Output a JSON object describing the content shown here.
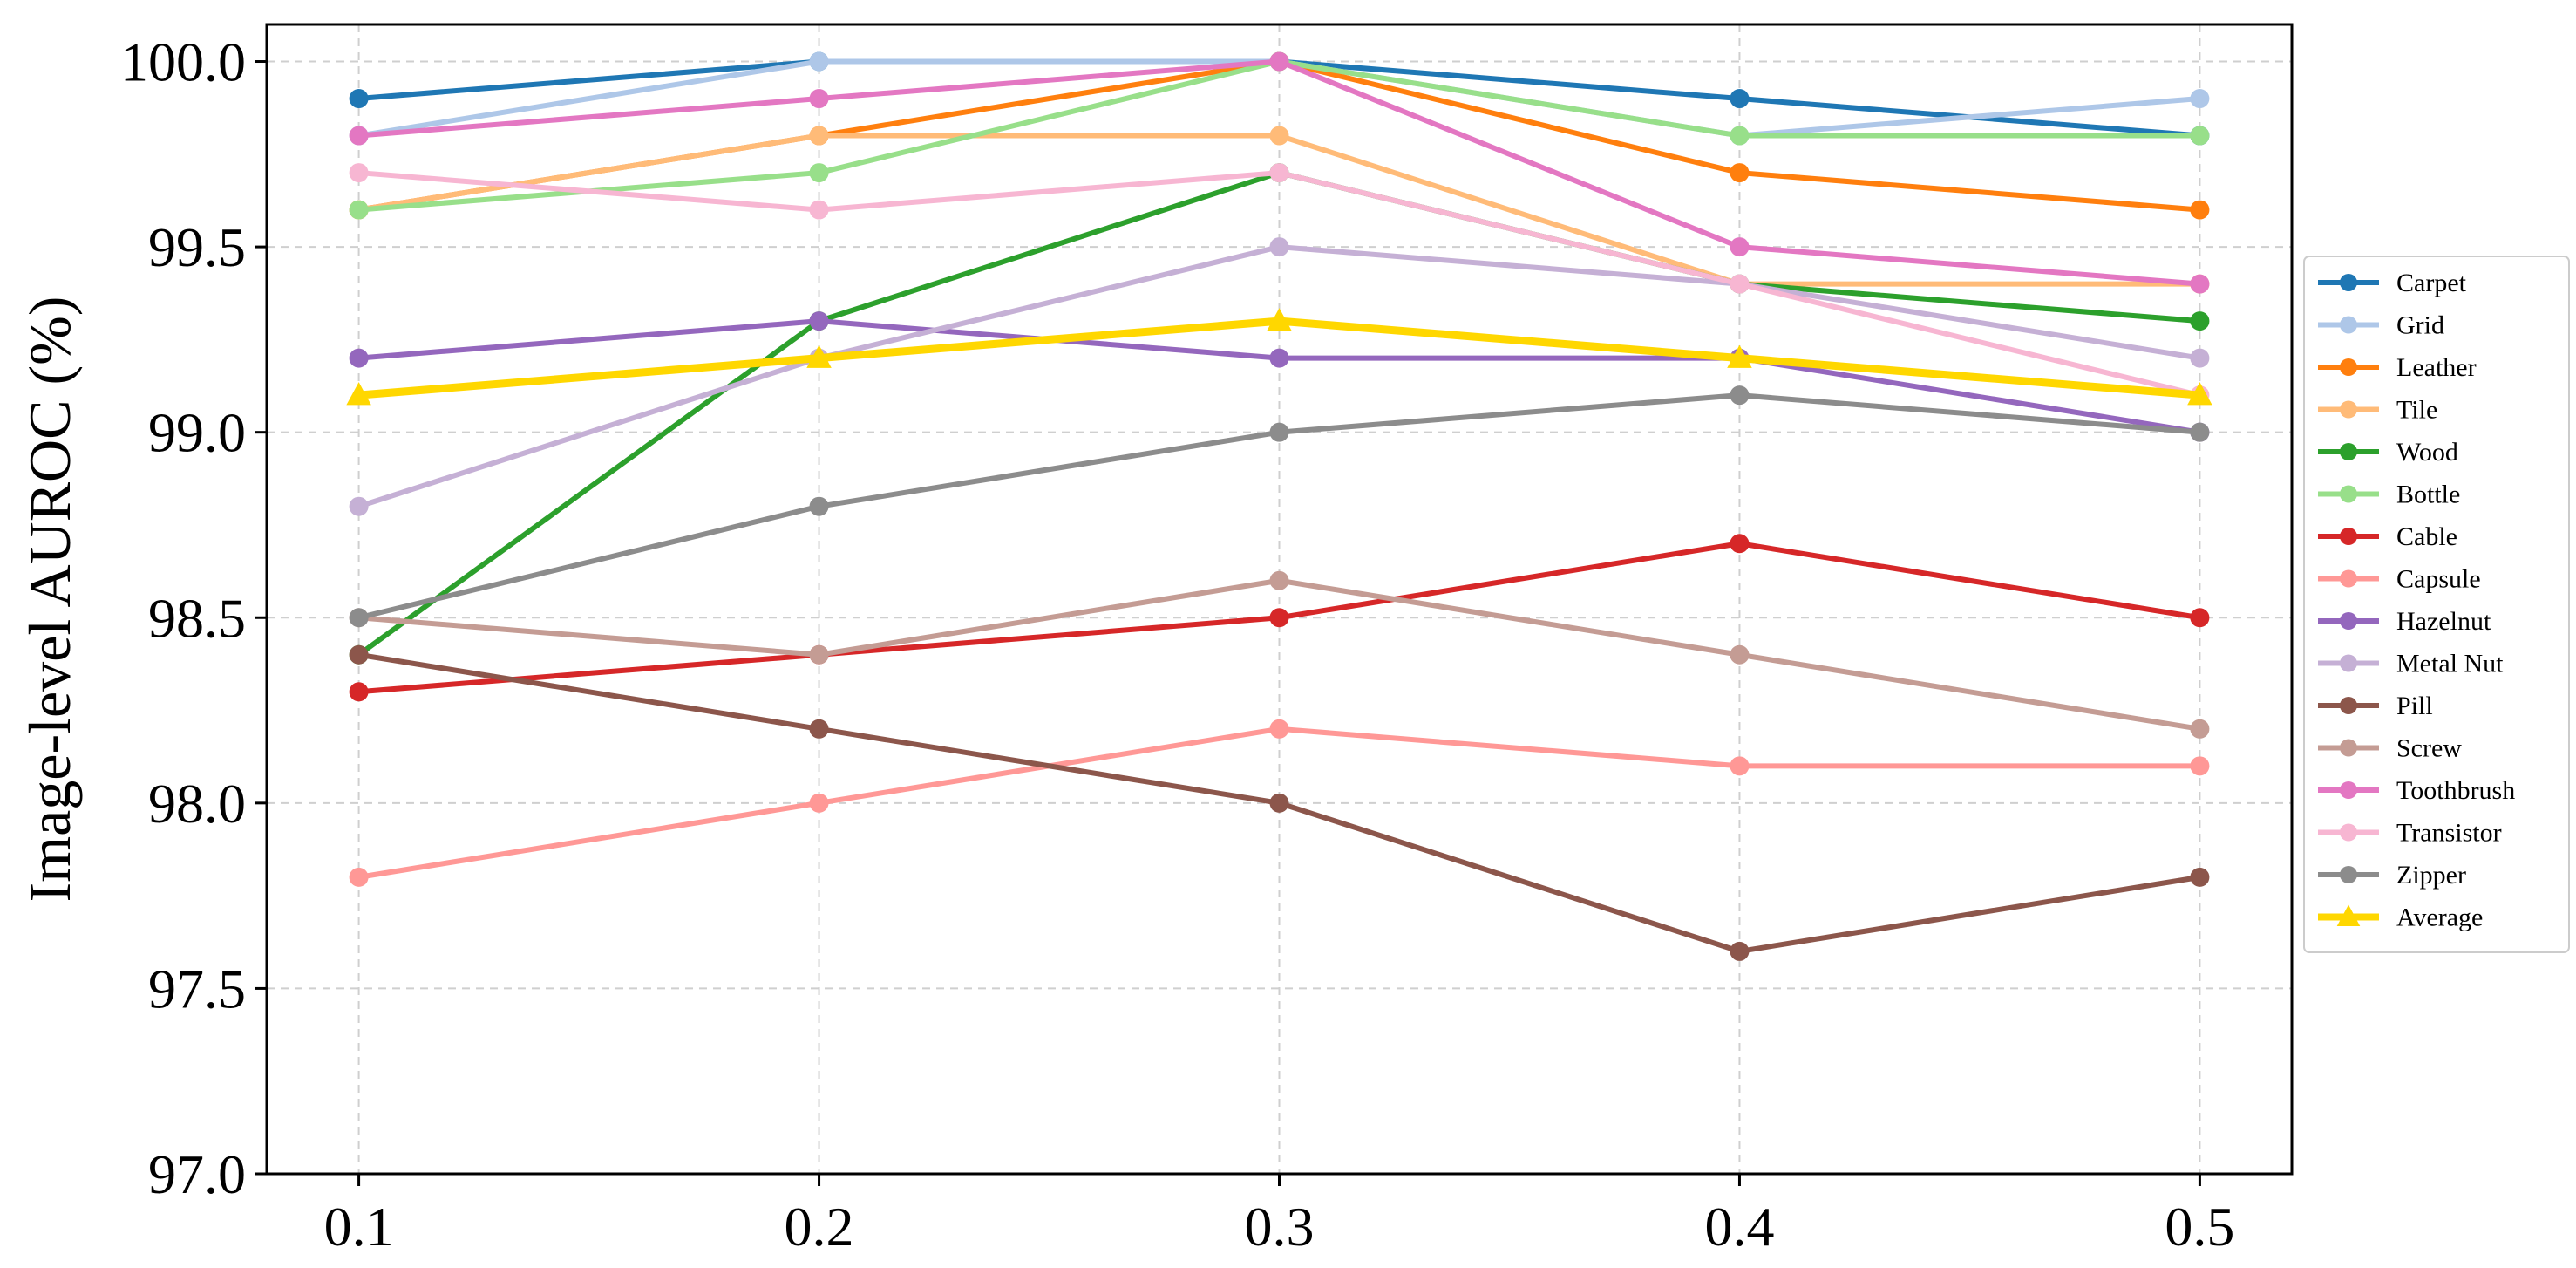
{
  "chart_data": {
    "type": "line",
    "title": "",
    "xlabel": "",
    "ylabel": "Image-level AUROC (%)",
    "x": [
      0.1,
      0.2,
      0.3,
      0.4,
      0.5
    ],
    "xtick_labels": [
      "0.1",
      "0.2",
      "0.3",
      "0.4",
      "0.5"
    ],
    "xlim": [
      0.08,
      0.52
    ],
    "ylim": [
      97.0,
      100.1
    ],
    "yticks": [
      97.0,
      97.5,
      98.0,
      98.5,
      99.0,
      99.5,
      100.0
    ],
    "ytick_labels": [
      "97.0",
      "97.5",
      "98.0",
      "98.5",
      "99.0",
      "99.5",
      "100.0"
    ],
    "grid": true,
    "legend_position": "right",
    "series": [
      {
        "name": "Carpet",
        "color": "#1f77b4",
        "marker": "circle",
        "values": [
          99.9,
          100.0,
          100.0,
          99.9,
          99.8
        ]
      },
      {
        "name": "Grid",
        "color": "#aec7e8",
        "marker": "circle",
        "values": [
          99.8,
          100.0,
          100.0,
          99.8,
          99.9
        ]
      },
      {
        "name": "Leather",
        "color": "#ff7f0e",
        "marker": "circle",
        "values": [
          99.6,
          99.8,
          100.0,
          99.7,
          99.6
        ]
      },
      {
        "name": "Tile",
        "color": "#ffbb78",
        "marker": "circle",
        "values": [
          99.6,
          99.8,
          99.8,
          99.4,
          99.4
        ]
      },
      {
        "name": "Wood",
        "color": "#2ca02c",
        "marker": "circle",
        "values": [
          98.4,
          99.3,
          99.7,
          99.4,
          99.3
        ]
      },
      {
        "name": "Bottle",
        "color": "#98df8a",
        "marker": "circle",
        "values": [
          99.6,
          99.7,
          100.0,
          99.8,
          99.8
        ]
      },
      {
        "name": "Cable",
        "color": "#d62728",
        "marker": "circle",
        "values": [
          98.3,
          98.4,
          98.5,
          98.7,
          98.5
        ]
      },
      {
        "name": "Capsule",
        "color": "#ff9896",
        "marker": "circle",
        "values": [
          97.8,
          98.0,
          98.2,
          98.1,
          98.1
        ]
      },
      {
        "name": "Hazelnut",
        "color": "#9467bd",
        "marker": "circle",
        "values": [
          99.2,
          99.3,
          99.2,
          99.2,
          99.0
        ]
      },
      {
        "name": "Metal Nut",
        "color": "#c5b0d5",
        "marker": "circle",
        "values": [
          98.8,
          99.2,
          99.5,
          99.4,
          99.2
        ]
      },
      {
        "name": "Pill",
        "color": "#8c564b",
        "marker": "circle",
        "values": [
          98.4,
          98.2,
          98.0,
          97.6,
          97.8
        ]
      },
      {
        "name": "Screw",
        "color": "#c49c94",
        "marker": "circle",
        "values": [
          98.5,
          98.4,
          98.6,
          98.4,
          98.2
        ]
      },
      {
        "name": "Toothbrush",
        "color": "#e377c2",
        "marker": "circle",
        "values": [
          99.8,
          99.9,
          100.0,
          99.5,
          99.4
        ]
      },
      {
        "name": "Transistor",
        "color": "#f7b6d2",
        "marker": "circle",
        "values": [
          99.7,
          99.6,
          99.7,
          99.4,
          99.1
        ]
      },
      {
        "name": "Zipper",
        "color": "#8c8c8c",
        "marker": "circle",
        "values": [
          98.5,
          98.8,
          99.0,
          99.1,
          99.0
        ]
      },
      {
        "name": "Average",
        "color": "#ffd700",
        "marker": "triangle",
        "values": [
          99.1,
          99.2,
          99.3,
          99.2,
          99.1
        ]
      }
    ]
  }
}
